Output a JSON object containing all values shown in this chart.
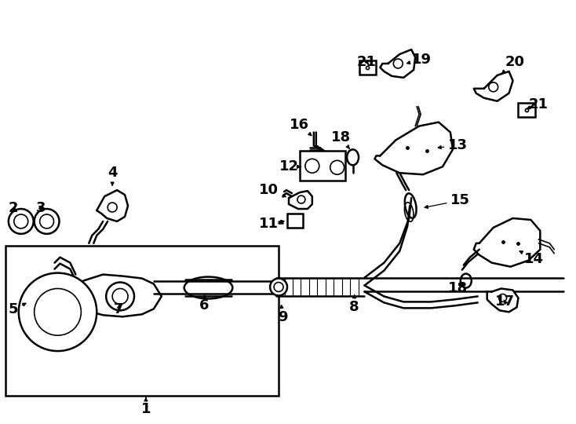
{
  "bg_color": "#ffffff",
  "line_color": "#000000",
  "fig_width": 7.34,
  "fig_height": 5.4,
  "dpi": 100,
  "label_fontsize": 13
}
